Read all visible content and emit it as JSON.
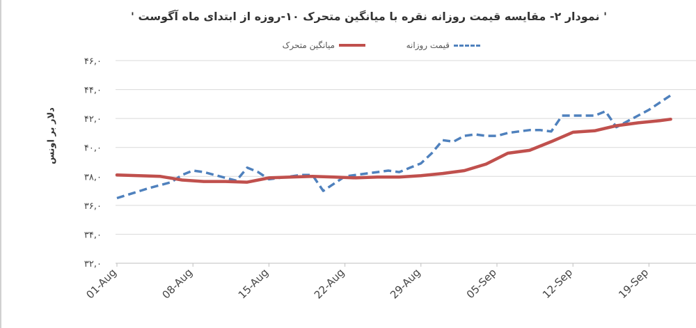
{
  "chart_data": {
    "type": "line",
    "title": "' نمودار ۲- مقایسه قیمت روزانه نقره با میانگین متحرک ۱۰-روزه از ابتدای ماه آگوست '",
    "ylabel": "دلار بر اونس",
    "xlabel": "",
    "ylim": [
      32,
      46
    ],
    "yticks": [
      "۳۲,۰",
      "۳۴,۰",
      "۳۶,۰",
      "۳۸,۰",
      "۴۰,۰",
      "۴۲,۰",
      "۴۴,۰",
      "۴۶,۰"
    ],
    "ytick_values": [
      32,
      34,
      36,
      38,
      40,
      42,
      44,
      46
    ],
    "xticks": [
      "01-Aug",
      "08-Aug",
      "15-Aug",
      "22-Aug",
      "29-Aug",
      "05-Sep",
      "12-Sep",
      "19-Sep"
    ],
    "xtick_days": [
      0,
      7,
      14,
      21,
      28,
      35,
      42,
      49
    ],
    "grid": "horizontal",
    "legend_position": "top",
    "series": [
      {
        "name": "قیمت روزانه",
        "style": "dashed",
        "color": "#4f81bd",
        "x": [
          0,
          3,
          5,
          6,
          7,
          8,
          9,
          10,
          11,
          12,
          13,
          14,
          15,
          16,
          17,
          18,
          19,
          20,
          21,
          22,
          23,
          24,
          25,
          26,
          27,
          28,
          29,
          30,
          31,
          32,
          33,
          34,
          35,
          36,
          37,
          38,
          39,
          40,
          41,
          42,
          43,
          44,
          45,
          46,
          47,
          48,
          49,
          50,
          51
        ],
        "y": [
          36.5,
          37.2,
          37.6,
          38.1,
          38.4,
          38.3,
          38.1,
          37.9,
          37.7,
          38.6,
          38.3,
          37.8,
          37.9,
          38.0,
          38.1,
          38.1,
          37.0,
          37.5,
          38.0,
          38.1,
          38.2,
          38.3,
          38.4,
          38.3,
          38.6,
          38.9,
          39.6,
          40.5,
          40.4,
          40.8,
          40.9,
          40.8,
          40.8,
          41.0,
          41.1,
          41.2,
          41.2,
          41.1,
          42.2,
          42.2,
          42.2,
          42.2,
          42.5,
          41.4,
          41.8,
          42.2,
          42.6,
          43.1,
          43.6
        ]
      },
      {
        "name": "میانگین متحرک",
        "style": "solid",
        "color": "#c0504d",
        "x": [
          0,
          2,
          4,
          6,
          8,
          10,
          12,
          14,
          16,
          18,
          20,
          22,
          24,
          26,
          28,
          30,
          32,
          34,
          36,
          38,
          40,
          42,
          44,
          46,
          48,
          50,
          51
        ],
        "y": [
          38.1,
          38.05,
          38.0,
          37.75,
          37.65,
          37.65,
          37.6,
          37.9,
          37.95,
          38.0,
          37.95,
          37.9,
          37.95,
          37.95,
          38.05,
          38.2,
          38.4,
          38.85,
          39.6,
          39.8,
          40.4,
          41.05,
          41.15,
          41.5,
          41.7,
          41.85,
          41.95
        ]
      }
    ]
  }
}
